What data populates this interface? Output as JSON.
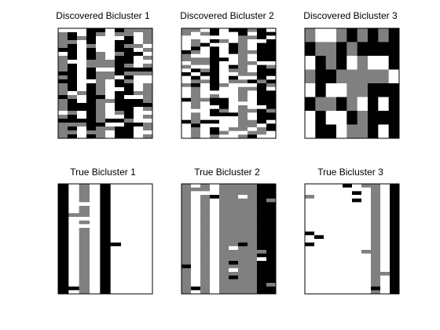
{
  "figure": {
    "background": "#ffffff"
  },
  "colors": {
    "0": "#ffffff",
    "1": "#808080",
    "2": "#000000"
  },
  "chart_data": [
    {
      "type": "heatmap",
      "title": "Discovered Bicluster 1",
      "rows": 28,
      "cols": 10,
      "col_pattern": [
        1,
        2,
        0,
        2,
        1,
        0,
        2,
        2,
        0,
        1
      ],
      "row_variation": 0.45,
      "seed": 11,
      "legend": "none",
      "grid": false,
      "ticks": false
    },
    {
      "type": "heatmap",
      "title": "Discovered Bicluster 2",
      "rows": 30,
      "cols": 10,
      "col_pattern": [
        0,
        1,
        0,
        2,
        0,
        0,
        1,
        0,
        2,
        2
      ],
      "row_variation": 0.5,
      "seed": 23,
      "legend": "none",
      "grid": false,
      "ticks": false
    },
    {
      "type": "heatmap",
      "title": "Discovered Bicluster 3",
      "rows": 8,
      "cols": 9,
      "col_pattern": [
        0,
        2,
        2,
        0,
        1,
        1,
        2,
        0,
        2
      ],
      "row_variation": 0.45,
      "seed": 37,
      "legend": "none",
      "grid": false,
      "ticks": false
    },
    {
      "type": "heatmap",
      "title": "True Bicluster 1",
      "rows": 30,
      "cols": 9,
      "col_pattern": [
        2,
        0,
        1,
        0,
        2,
        0,
        0,
        0,
        0
      ],
      "row_variation": 0.06,
      "seed": 41,
      "legend": "none",
      "grid": false,
      "ticks": false
    },
    {
      "type": "heatmap",
      "title": "True Bicluster 2",
      "rows": 30,
      "cols": 10,
      "col_pattern": [
        1,
        0,
        1,
        0,
        1,
        1,
        1,
        1,
        2,
        2
      ],
      "row_variation": 0.08,
      "seed": 53,
      "legend": "none",
      "grid": false,
      "ticks": false
    },
    {
      "type": "heatmap",
      "title": "True Bicluster 3",
      "rows": 30,
      "cols": 10,
      "col_pattern": [
        0,
        0,
        0,
        0,
        0,
        0,
        0,
        1,
        0,
        2
      ],
      "row_variation": 0.05,
      "seed": 67,
      "legend": "none",
      "grid": false,
      "ticks": false
    }
  ]
}
